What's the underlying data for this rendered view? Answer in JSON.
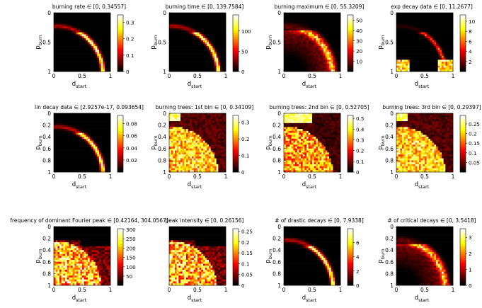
{
  "colormap": "hot",
  "chart_data": [
    {
      "type": "heatmap",
      "title": "burning rate ∈ [0, 0.34557]",
      "xlabel": "d",
      "xlabel_sub": "start",
      "ylabel": "p",
      "ylabel_sub": "burn",
      "xticks": [
        "0",
        "0.5",
        "1"
      ],
      "yticks": [
        "0",
        "0.5",
        "1"
      ],
      "cbar_ticks": [
        {
          "v": 0,
          "t": "0"
        },
        {
          "v": 0.1,
          "t": "0.1"
        },
        {
          "v": 0.2,
          "t": "0.2"
        },
        {
          "v": 0.3,
          "t": "0.3"
        }
      ],
      "cbar_range": [
        0,
        0.34557
      ],
      "pattern": "arc"
    },
    {
      "type": "heatmap",
      "title": "burning time ∈ [0, 139.7584]",
      "xlabel": "d",
      "xlabel_sub": "start",
      "ylabel": "p",
      "ylabel_sub": "burn",
      "xticks": [
        "0",
        "0.5",
        "1"
      ],
      "yticks": [
        "0",
        "0.5",
        "1"
      ],
      "cbar_ticks": [
        {
          "v": 0,
          "t": "0"
        },
        {
          "v": 50,
          "t": "50"
        },
        {
          "v": 100,
          "t": "100"
        }
      ],
      "cbar_range": [
        0,
        139.7584
      ],
      "pattern": "arc"
    },
    {
      "type": "heatmap",
      "title": "burning maximum ∈ [0, 55.3209]",
      "xlabel": "d",
      "xlabel_sub": "start",
      "ylabel": "p",
      "ylabel_sub": "burn",
      "xticks": [
        "0",
        "0.5",
        "1"
      ],
      "yticks": [
        "0",
        "0.5",
        "1"
      ],
      "cbar_ticks": [
        {
          "v": 10,
          "t": "10"
        },
        {
          "v": 20,
          "t": "20"
        },
        {
          "v": 30,
          "t": "30"
        },
        {
          "v": 40,
          "t": "40"
        },
        {
          "v": 50,
          "t": "50"
        }
      ],
      "cbar_range": [
        0,
        55.3209
      ],
      "pattern": "arcfill"
    },
    {
      "type": "heatmap",
      "title": "exp decay data ∈ [0, 11.2677]",
      "xlabel": "d",
      "xlabel_sub": "start",
      "ylabel": "p",
      "ylabel_sub": "burn",
      "xticks": [
        "0",
        "0.5",
        "1"
      ],
      "yticks": [
        "0",
        "0.5",
        "1"
      ],
      "cbar_ticks": [
        {
          "v": 2,
          "t": "2"
        },
        {
          "v": 4,
          "t": "4"
        },
        {
          "v": 6,
          "t": "6"
        },
        {
          "v": 8,
          "t": "8"
        },
        {
          "v": 10,
          "t": "10"
        }
      ],
      "cbar_range": [
        0,
        11.2677
      ],
      "pattern": "expdecay"
    },
    {
      "type": "heatmap",
      "title": "lin decay data ∈ [2.9257e-17, 0.093654]",
      "xlabel": "d",
      "xlabel_sub": "start",
      "ylabel": "p",
      "ylabel_sub": "burn",
      "xticks": [
        "0",
        "0.5",
        "1"
      ],
      "yticks": [
        "0",
        "0.2",
        "0.4",
        "0.6",
        "0.8",
        "1"
      ],
      "cbar_ticks": [
        {
          "v": 0.02,
          "t": "0.02"
        },
        {
          "v": 0.04,
          "t": "0.04"
        },
        {
          "v": 0.06,
          "t": "0.06"
        },
        {
          "v": 0.08,
          "t": "0.08"
        }
      ],
      "cbar_range": [
        0,
        0.093654
      ],
      "pattern": "arc"
    },
    {
      "type": "heatmap",
      "title": "burning trees: 1st bin ∈ [0, 0.34109]",
      "xlabel": "d",
      "xlabel_sub": "start",
      "ylabel": "p",
      "ylabel_sub": "burn",
      "xticks": [
        "0",
        "0.5",
        "1"
      ],
      "yticks": [
        "0",
        "0.2",
        "0.4",
        "0.6",
        "0.8",
        "1"
      ],
      "cbar_ticks": [
        {
          "v": 0,
          "t": "0"
        },
        {
          "v": 0.1,
          "t": "0.1"
        },
        {
          "v": 0.2,
          "t": "0.2"
        },
        {
          "v": 0.3,
          "t": "0.3"
        }
      ],
      "cbar_range": [
        0,
        0.34109
      ],
      "pattern": "noisy"
    },
    {
      "type": "heatmap",
      "title": "burning trees: 2nd bin ∈ [0, 0.52705]",
      "xlabel": "d",
      "xlabel_sub": "start",
      "ylabel": "p",
      "ylabel_sub": "burn",
      "xticks": [
        "0",
        "0.5",
        "1"
      ],
      "yticks": [
        "0",
        "0.2",
        "0.4",
        "0.6",
        "0.8",
        "1"
      ],
      "cbar_ticks": [
        {
          "v": 0,
          "t": "0"
        },
        {
          "v": 0.1,
          "t": "0.1"
        },
        {
          "v": 0.2,
          "t": "0.2"
        },
        {
          "v": 0.3,
          "t": "0.3"
        },
        {
          "v": 0.4,
          "t": "0.4"
        },
        {
          "v": 0.5,
          "t": "0.5"
        }
      ],
      "cbar_range": [
        0,
        0.52705
      ],
      "pattern": "noisy2"
    },
    {
      "type": "heatmap",
      "title": "burning trees: 3rd bin ∈ [0, 0.29397]",
      "xlabel": "d",
      "xlabel_sub": "start",
      "ylabel": "p",
      "ylabel_sub": "burn",
      "xticks": [
        "0",
        "0.5",
        "1"
      ],
      "yticks": [
        "0",
        "0.2",
        "0.4",
        "0.6",
        "0.8",
        "1"
      ],
      "cbar_ticks": [
        {
          "v": 0.05,
          "t": "0.05"
        },
        {
          "v": 0.1,
          "t": "0.1"
        },
        {
          "v": 0.15,
          "t": "0.15"
        },
        {
          "v": 0.2,
          "t": "0.2"
        },
        {
          "v": 0.25,
          "t": "0.25"
        }
      ],
      "cbar_range": [
        0,
        0.29397
      ],
      "pattern": "noisy"
    },
    {
      "type": "heatmap",
      "title": "frequency of dominant Fourier peak ∈ [0.42164, 304.0567]",
      "xlabel": "d",
      "xlabel_sub": "start",
      "ylabel": "p",
      "ylabel_sub": "burn",
      "xticks": [
        "0",
        "0.5",
        "1"
      ],
      "yticks": [
        "0",
        "0.2",
        "0.4",
        "0.6",
        "0.8",
        "1"
      ],
      "cbar_ticks": [
        {
          "v": 50,
          "t": "50"
        },
        {
          "v": 100,
          "t": "100"
        },
        {
          "v": 150,
          "t": "150"
        },
        {
          "v": 200,
          "t": "200"
        },
        {
          "v": 250,
          "t": "250"
        },
        {
          "v": 300,
          "t": "300"
        }
      ],
      "cbar_range": [
        0.42164,
        304.0567
      ],
      "pattern": "fourier"
    },
    {
      "type": "heatmap",
      "title": "peak intensity ∈ [0, 0.26156]",
      "xlabel": "d",
      "xlabel_sub": "start",
      "ylabel": "",
      "ylabel_sub": "",
      "xticks": [
        "0",
        "0.5",
        "1"
      ],
      "yticks": [],
      "cbar_ticks": [
        {
          "v": 0,
          "t": "0"
        },
        {
          "v": 0.05,
          "t": "0.05"
        },
        {
          "v": 0.1,
          "t": "0.1"
        },
        {
          "v": 0.15,
          "t": "0.15"
        },
        {
          "v": 0.2,
          "t": "0.2"
        },
        {
          "v": 0.25,
          "t": "0.25"
        }
      ],
      "cbar_range": [
        0,
        0.26156
      ],
      "pattern": "fourier"
    },
    {
      "type": "heatmap",
      "title": "# of drastic decays ∈ [0, 7.9338]",
      "xlabel": "d",
      "xlabel_sub": "start",
      "ylabel": "p",
      "ylabel_sub": "burn",
      "xticks": [
        "0",
        "0.5",
        "1"
      ],
      "yticks": [
        "0",
        "0.2",
        "0.4",
        "0.6",
        "0.8",
        "1"
      ],
      "cbar_ticks": [
        {
          "v": 0,
          "t": "0"
        },
        {
          "v": 2,
          "t": "2"
        },
        {
          "v": 4,
          "t": "4"
        },
        {
          "v": 6,
          "t": "6"
        }
      ],
      "cbar_range": [
        0,
        7.9338
      ],
      "pattern": "arc"
    },
    {
      "type": "heatmap",
      "title": "# of critical decays ∈ [0, 3.5418]",
      "xlabel": "d",
      "xlabel_sub": "start",
      "ylabel": "p",
      "ylabel_sub": "burn",
      "xticks": [
        "0",
        "0.5",
        "1"
      ],
      "yticks": [
        "0",
        "0.2",
        "0.4",
        "0.6",
        "0.8",
        "1"
      ],
      "cbar_ticks": [
        {
          "v": 0,
          "t": "0"
        },
        {
          "v": 1,
          "t": "1"
        },
        {
          "v": 2,
          "t": "2"
        },
        {
          "v": 3,
          "t": "3"
        }
      ],
      "cbar_range": [
        0,
        3.5418
      ],
      "pattern": "arcfill"
    }
  ]
}
